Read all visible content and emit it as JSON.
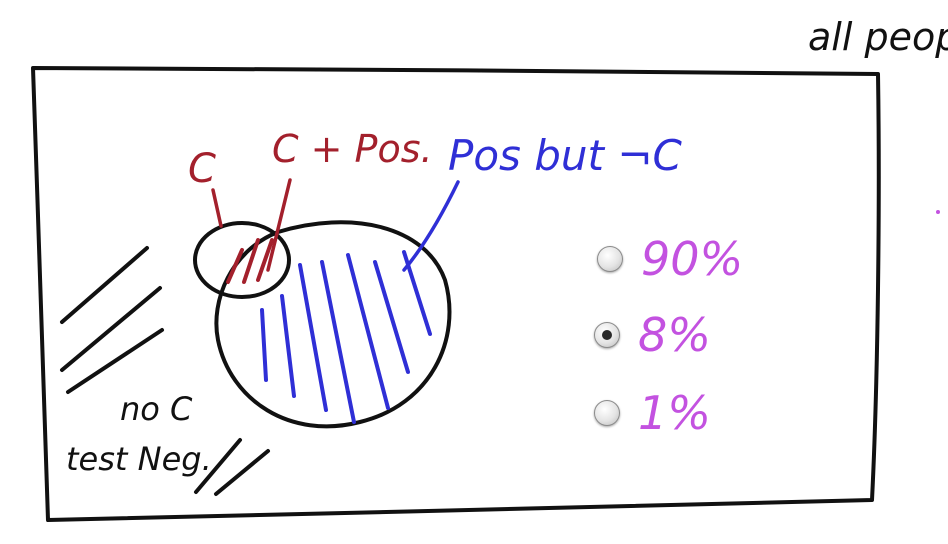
{
  "corner_label": "all peop",
  "labels": {
    "c": "C",
    "c_pos": "C + Pos.",
    "pos_not_c": "Pos but ¬C",
    "no_c": "no C",
    "test_neg": "test Neg."
  },
  "quiz": {
    "options": [
      {
        "label": "90%",
        "selected": false
      },
      {
        "label": "8%",
        "selected": true
      },
      {
        "label": "1%",
        "selected": false
      }
    ]
  },
  "colors": {
    "ink": "#111111",
    "red": "#a3202c",
    "blue": "#2f2fd6",
    "purple": "#c352e0"
  }
}
